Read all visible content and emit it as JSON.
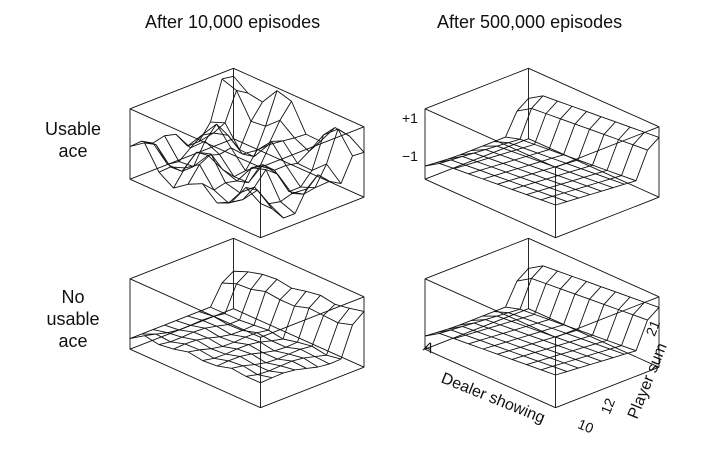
{
  "columns": [
    "After 10,000 episodes",
    "After 500,000 episodes"
  ],
  "rows": [
    {
      "lines": [
        "Usable",
        "ace"
      ]
    },
    {
      "lines": [
        "No",
        "usable",
        "ace"
      ]
    }
  ],
  "z_ticks": {
    "top": "+1",
    "bottom": "−1"
  },
  "axes": {
    "dealer": {
      "title": "Dealer showing",
      "start": "A",
      "end": "10"
    },
    "player": {
      "title": "Player sum",
      "start": "12",
      "end": "21"
    }
  }
}
